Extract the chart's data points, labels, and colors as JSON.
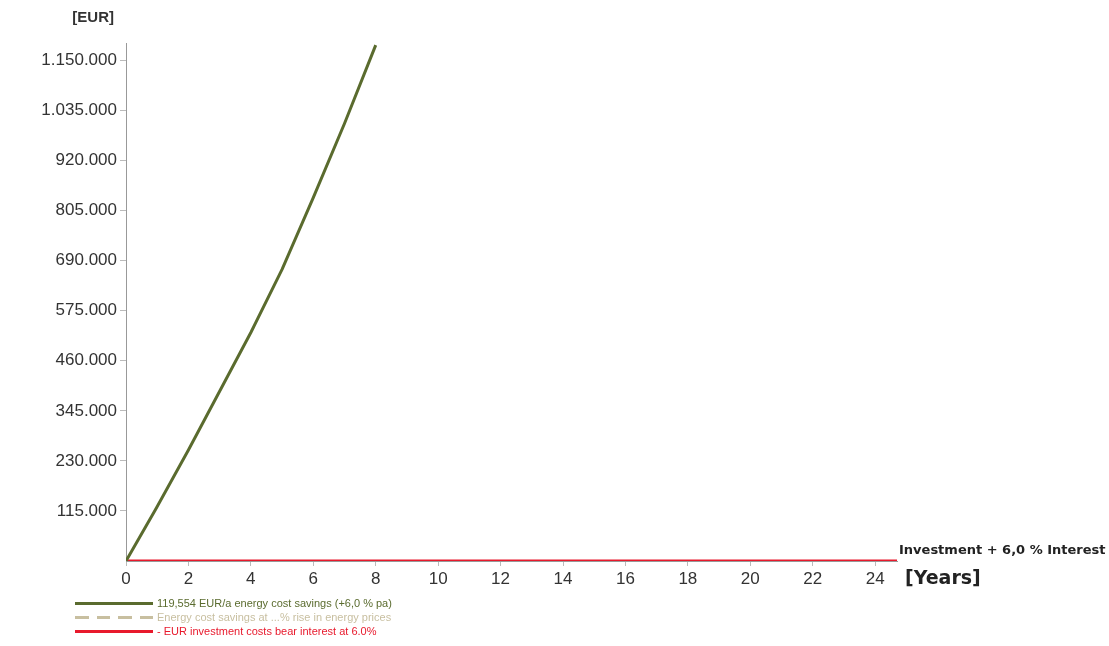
{
  "chart_data": {
    "type": "line",
    "ylabel": "[EUR]",
    "xlabel": "[Years]",
    "xlim": [
      0,
      24.7
    ],
    "xticks": [
      0,
      2,
      4,
      6,
      8,
      10,
      12,
      14,
      16,
      18,
      20,
      22,
      24
    ],
    "ylim": [
      0,
      1190000
    ],
    "yticks": [
      {
        "value": 115000,
        "label": "115.000"
      },
      {
        "value": 230000,
        "label": "230.000"
      },
      {
        "value": 345000,
        "label": "345.000"
      },
      {
        "value": 460000,
        "label": "460.000"
      },
      {
        "value": 575000,
        "label": "575.000"
      },
      {
        "value": 690000,
        "label": "690.000"
      },
      {
        "value": 805000,
        "label": "805.000"
      },
      {
        "value": 920000,
        "label": "920.000"
      },
      {
        "value": 1035000,
        "label": "1.035.000"
      },
      {
        "value": 1150000,
        "label": "1.150.000"
      }
    ],
    "grid": false,
    "legend": "bottom left",
    "marker": "none",
    "series": [
      {
        "name": "119,554 EUR/a energy cost savings (+6,0 % pa)",
        "color": "#5a6b2e",
        "line_style": "solid",
        "x": [
          0,
          1,
          2,
          3,
          4,
          5,
          6,
          7,
          8
        ],
        "values": [
          0,
          125000,
          255000,
          390000,
          525000,
          670000,
          835000,
          1005000,
          1185000
        ]
      },
      {
        "name": "Energy cost savings at ...% rise in energy prices",
        "color": "#c8bfa0",
        "line_style": "dashed"
      },
      {
        "name": "- EUR investment costs bear interest at 6.0%",
        "color": "#e8192c",
        "line_style": "solid",
        "x": [
          0,
          24.7
        ],
        "values": [
          0,
          0
        ]
      }
    ],
    "annotations": [
      {
        "text": "Investment + 6,0 % Interest",
        "x": 24.7,
        "y": 0
      }
    ]
  }
}
